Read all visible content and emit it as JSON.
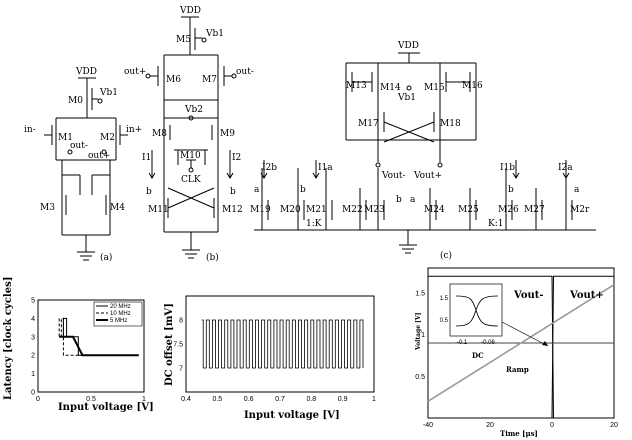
{
  "circuit": {
    "panel_a": {
      "label": "(a)",
      "vdd": "VDD",
      "m0": "M0",
      "vb1": "Vb1",
      "m1": "M1",
      "m2": "M2",
      "in_minus": "in-",
      "in_plus": "in+",
      "out_minus": "out-",
      "out_plus": "out+",
      "m3": "M3",
      "m4": "M4"
    },
    "panel_b": {
      "label": "(b)",
      "vdd": "VDD",
      "m5": "M5",
      "vb1": "Vb1",
      "out_plus": "out+",
      "out_minus": "out-",
      "m6": "M6",
      "m7": "M7",
      "vb2": "Vb2",
      "m8": "M8",
      "m9": "M9",
      "m10": "M10",
      "clk": "CLK",
      "i1": "I1",
      "i2": "I2",
      "b_left": "b",
      "b_right": "b",
      "m11": "M11",
      "m12": "M12"
    },
    "panel_c": {
      "label": "(c)",
      "vdd": "VDD",
      "m13": "M13",
      "m14": "M14",
      "vb1": "Vb1",
      "m15": "M15",
      "m16": "M16",
      "m17": "M17",
      "m18": "M18",
      "vout_minus": "Vout-",
      "vout_plus": "Vout+",
      "i2b": "I2b",
      "i1a": "I1a",
      "i1b": "I1b",
      "i2a": "I2a",
      "a1": "a",
      "b1": "b",
      "b2": "b",
      "a2": "a",
      "b3": "b",
      "a3": "a",
      "m19": "M19",
      "m20": "M20",
      "m21": "M21",
      "m22": "M22",
      "m23": "M23",
      "m24": "M24",
      "m25": "M25",
      "m26": "M26",
      "m27": "M27",
      "m2r": "M2r",
      "ratio_1k": "1:K",
      "ratio_k1": "K:1"
    }
  },
  "chart_data": [
    {
      "type": "line",
      "ylabel": "Latency [clock cycles]",
      "xlabel": "Input voltage [V]",
      "xlim": [
        0,
        1
      ],
      "ylim": [
        0,
        5
      ],
      "xticks": [
        "0",
        "0.5",
        "1"
      ],
      "yticks": [
        "0",
        "1",
        "2",
        "3",
        "4",
        "5"
      ],
      "legend_position": "top-right",
      "series": [
        {
          "name": "20 MHz",
          "x": [
            0.2,
            0.2,
            0.24,
            0.24,
            0.27,
            0.27,
            0.3,
            0.38,
            0.38,
            0.95
          ],
          "values": [
            3,
            3,
            3,
            4,
            4,
            3,
            3,
            3,
            2,
            2
          ]
        },
        {
          "name": "10 MHz",
          "x": [
            0.2,
            0.2,
            0.22,
            0.22,
            0.24,
            0.24,
            0.95
          ],
          "values": [
            4,
            3,
            3,
            4,
            4,
            2,
            2
          ]
        },
        {
          "name": "5 MHz",
          "x": [
            0.2,
            0.33,
            0.42,
            0.42,
            0.95
          ],
          "values": [
            3,
            3,
            2,
            2,
            2
          ]
        }
      ]
    },
    {
      "type": "line",
      "ylabel": "DC offset [mV]",
      "xlabel": "Input voltage [V]",
      "xlim": [
        0.4,
        1.0
      ],
      "ylim": [
        6.5,
        8.5
      ],
      "xticks": [
        "0.4",
        "0.5",
        "0.6",
        "0.7",
        "0.8",
        "0.9",
        "1"
      ],
      "yticks": [
        "7",
        "7.5",
        "8"
      ],
      "series": [
        {
          "name": "",
          "x": [
            0.45,
            0.96
          ],
          "values": [
            7,
            8
          ],
          "pattern": "alternating between 7 and 8"
        }
      ]
    },
    {
      "type": "line",
      "ylabel": "Voltage [V]",
      "xlabel": "Time [μs]",
      "xlim": [
        -40,
        20
      ],
      "ylim": [
        0,
        1.8
      ],
      "xticks": [
        "-40",
        "20",
        "0",
        "20"
      ],
      "yticks": [
        "0.5",
        "1",
        "1.5"
      ],
      "annotations": [
        "Vout-",
        "Vout+",
        "DC",
        "Ramp"
      ],
      "inset": {
        "xticks": [
          "-0.1",
          "-0.06"
        ],
        "yticks": [
          "1.5",
          "0.5"
        ]
      },
      "series": [
        {
          "name": "Vout-",
          "x": [
            -40,
            0,
            0.5,
            20
          ],
          "values": [
            1.7,
            1.7,
            0,
            0
          ]
        },
        {
          "name": "Vout+",
          "x": [
            -40,
            0,
            0.5,
            20
          ],
          "values": [
            0,
            0,
            1.7,
            1.7
          ]
        },
        {
          "name": "DC",
          "x": [
            -40,
            20
          ],
          "values": [
            0.9,
            0.9
          ]
        },
        {
          "name": "Ramp",
          "x": [
            -40,
            20
          ],
          "values": [
            0.2,
            1.6
          ]
        }
      ]
    }
  ]
}
